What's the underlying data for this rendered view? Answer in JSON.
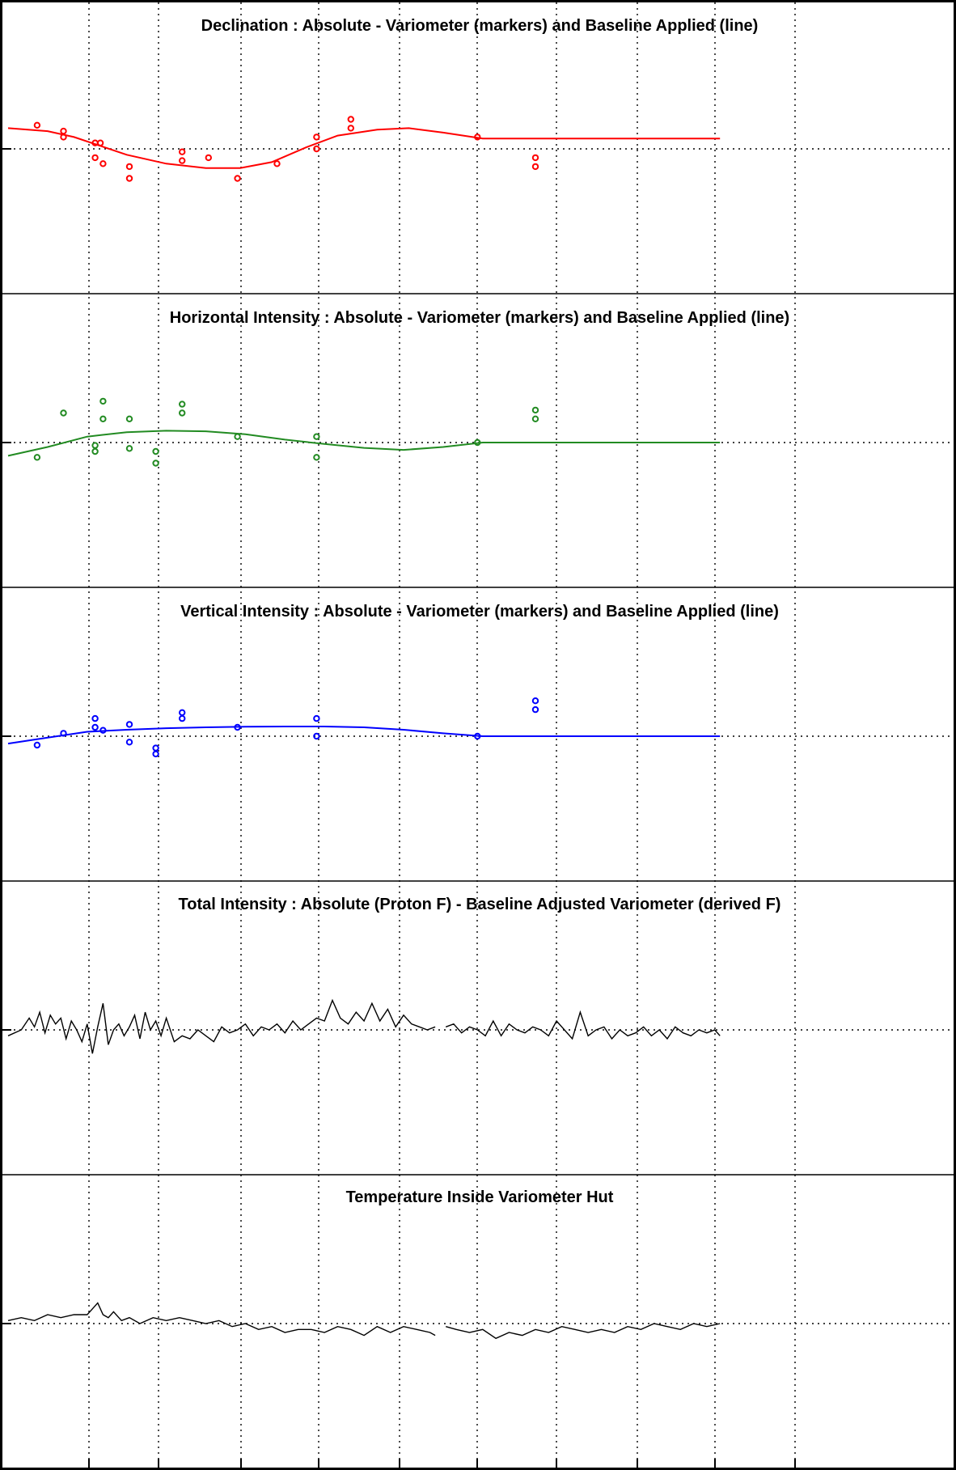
{
  "chart_data": [
    {
      "type": "scatter",
      "title": "Declination : Absolute - Variometer (markers) and Baseline Applied (line)",
      "color": "#ff0000",
      "x_range": [
        0,
        30
      ],
      "y_range": [
        -8,
        8
      ],
      "reference_y": 0,
      "markers": [
        {
          "x": 1.1,
          "y": 0.8
        },
        {
          "x": 2.1,
          "y": 0.6
        },
        {
          "x": 2.1,
          "y": 0.4
        },
        {
          "x": 3.3,
          "y": 0.2
        },
        {
          "x": 3.5,
          "y": 0.2
        },
        {
          "x": 3.3,
          "y": -0.3
        },
        {
          "x": 3.6,
          "y": -0.5
        },
        {
          "x": 4.6,
          "y": -0.6
        },
        {
          "x": 4.6,
          "y": -1.0
        },
        {
          "x": 6.6,
          "y": -0.1
        },
        {
          "x": 6.6,
          "y": -0.4
        },
        {
          "x": 7.6,
          "y": -0.3
        },
        {
          "x": 8.7,
          "y": -1.0
        },
        {
          "x": 10.2,
          "y": -0.5
        },
        {
          "x": 11.7,
          "y": 0.4
        },
        {
          "x": 11.7,
          "y": 0.0
        },
        {
          "x": 13.0,
          "y": 1.0
        },
        {
          "x": 13.0,
          "y": 0.7
        },
        {
          "x": 17.8,
          "y": 0.4
        },
        {
          "x": 20.0,
          "y": -0.3
        },
        {
          "x": 20.0,
          "y": -0.6
        }
      ],
      "baseline": [
        {
          "x": 0,
          "y": 0.7
        },
        {
          "x": 1.5,
          "y": 0.6
        },
        {
          "x": 2.5,
          "y": 0.4
        },
        {
          "x": 3.5,
          "y": 0.1
        },
        {
          "x": 4.5,
          "y": -0.2
        },
        {
          "x": 6.0,
          "y": -0.5
        },
        {
          "x": 7.5,
          "y": -0.65
        },
        {
          "x": 8.8,
          "y": -0.65
        },
        {
          "x": 10.0,
          "y": -0.45
        },
        {
          "x": 11.3,
          "y": 0.05
        },
        {
          "x": 12.5,
          "y": 0.45
        },
        {
          "x": 14.0,
          "y": 0.65
        },
        {
          "x": 15.2,
          "y": 0.7
        },
        {
          "x": 16.5,
          "y": 0.55
        },
        {
          "x": 18.0,
          "y": 0.35
        },
        {
          "x": 27.0,
          "y": 0.35
        }
      ]
    },
    {
      "type": "scatter",
      "title": "Horizontal Intensity : Absolute - Variometer (markers) and Baseline Applied (line)",
      "color": "#228B22",
      "x_range": [
        0,
        30
      ],
      "y_range": [
        -8,
        8
      ],
      "reference_y": 0,
      "markers": [
        {
          "x": 1.1,
          "y": -0.5
        },
        {
          "x": 2.1,
          "y": 1.0
        },
        {
          "x": 3.6,
          "y": 1.4
        },
        {
          "x": 3.6,
          "y": 0.8
        },
        {
          "x": 3.3,
          "y": -0.1
        },
        {
          "x": 3.3,
          "y": -0.3
        },
        {
          "x": 4.6,
          "y": 0.8
        },
        {
          "x": 4.6,
          "y": -0.2
        },
        {
          "x": 5.6,
          "y": -0.3
        },
        {
          "x": 5.6,
          "y": -0.7
        },
        {
          "x": 6.6,
          "y": 1.3
        },
        {
          "x": 6.6,
          "y": 1.0
        },
        {
          "x": 8.7,
          "y": 0.2
        },
        {
          "x": 11.7,
          "y": 0.2
        },
        {
          "x": 11.7,
          "y": -0.5
        },
        {
          "x": 17.8,
          "y": 0.0
        },
        {
          "x": 20.0,
          "y": 1.1
        },
        {
          "x": 20.0,
          "y": 0.8
        }
      ],
      "baseline": [
        {
          "x": 0,
          "y": -0.45
        },
        {
          "x": 1.5,
          "y": -0.15
        },
        {
          "x": 3.0,
          "y": 0.2
        },
        {
          "x": 4.5,
          "y": 0.35
        },
        {
          "x": 6.0,
          "y": 0.4
        },
        {
          "x": 7.5,
          "y": 0.38
        },
        {
          "x": 9.0,
          "y": 0.28
        },
        {
          "x": 10.5,
          "y": 0.1
        },
        {
          "x": 12.0,
          "y": -0.05
        },
        {
          "x": 13.5,
          "y": -0.18
        },
        {
          "x": 15.0,
          "y": -0.25
        },
        {
          "x": 16.5,
          "y": -0.15
        },
        {
          "x": 18.0,
          "y": 0.0
        },
        {
          "x": 27.0,
          "y": 0.0
        }
      ]
    },
    {
      "type": "scatter",
      "title": "Vertical Intensity : Absolute - Variometer (markers) and Baseline Applied (line)",
      "color": "#0000ff",
      "x_range": [
        0,
        30
      ],
      "y_range": [
        -8,
        8
      ],
      "reference_y": 0,
      "markers": [
        {
          "x": 1.1,
          "y": -0.3
        },
        {
          "x": 2.1,
          "y": 0.1
        },
        {
          "x": 3.3,
          "y": 0.6
        },
        {
          "x": 3.3,
          "y": 0.3
        },
        {
          "x": 3.6,
          "y": 0.2
        },
        {
          "x": 4.6,
          "y": 0.4
        },
        {
          "x": 4.6,
          "y": -0.2
        },
        {
          "x": 5.6,
          "y": -0.4
        },
        {
          "x": 5.6,
          "y": -0.6
        },
        {
          "x": 6.6,
          "y": 0.8
        },
        {
          "x": 6.6,
          "y": 0.6
        },
        {
          "x": 8.7,
          "y": 0.3
        },
        {
          "x": 11.7,
          "y": 0.6
        },
        {
          "x": 11.7,
          "y": 0.0
        },
        {
          "x": 17.8,
          "y": 0.0
        },
        {
          "x": 20.0,
          "y": 1.2
        },
        {
          "x": 20.0,
          "y": 0.9
        }
      ],
      "baseline": [
        {
          "x": 0,
          "y": -0.25
        },
        {
          "x": 1.5,
          "y": -0.05
        },
        {
          "x": 3.0,
          "y": 0.15
        },
        {
          "x": 4.5,
          "y": 0.22
        },
        {
          "x": 6.0,
          "y": 0.27
        },
        {
          "x": 7.5,
          "y": 0.3
        },
        {
          "x": 9.0,
          "y": 0.32
        },
        {
          "x": 10.5,
          "y": 0.33
        },
        {
          "x": 12.0,
          "y": 0.33
        },
        {
          "x": 13.5,
          "y": 0.3
        },
        {
          "x": 15.0,
          "y": 0.22
        },
        {
          "x": 16.5,
          "y": 0.1
        },
        {
          "x": 18.0,
          "y": 0.0
        },
        {
          "x": 27.0,
          "y": 0.0
        }
      ]
    },
    {
      "type": "line",
      "title": "Total Intensity : Absolute (Proton F) - Baseline Adjusted Variometer (derived F)",
      "color": "#000000",
      "x_range": [
        0,
        30
      ],
      "y_range": [
        -8,
        8
      ],
      "reference_y": 0,
      "series": [
        {
          "x": [
            0.0,
            0.5,
            0.8,
            1.0,
            1.2,
            1.4,
            1.6,
            1.8,
            2.0,
            2.2,
            2.4,
            2.6,
            2.8,
            3.0,
            3.2,
            3.4,
            3.6,
            3.8,
            4.0,
            4.2,
            4.4,
            4.6,
            4.8,
            5.0,
            5.2,
            5.4,
            5.6,
            5.8,
            6.0,
            6.3,
            6.6,
            6.9,
            7.2,
            7.5,
            7.8,
            8.1,
            8.4,
            8.7,
            9.0,
            9.3,
            9.6,
            9.9,
            10.2,
            10.5,
            10.8,
            11.1,
            11.4,
            11.7,
            12.0,
            12.3,
            12.6,
            12.9,
            13.2,
            13.5,
            13.8,
            14.1,
            14.4,
            14.7,
            15.0,
            15.3,
            15.6,
            15.9,
            16.2
          ],
          "y": [
            -0.2,
            0.0,
            0.4,
            0.1,
            0.6,
            -0.1,
            0.5,
            0.2,
            0.4,
            -0.3,
            0.3,
            0.0,
            -0.4,
            0.2,
            -0.8,
            0.1,
            0.9,
            -0.5,
            0.0,
            0.2,
            -0.2,
            0.1,
            0.5,
            -0.3,
            0.6,
            0.0,
            0.3,
            -0.2,
            0.4,
            -0.4,
            -0.2,
            -0.3,
            0.0,
            -0.2,
            -0.4,
            0.1,
            -0.1,
            0.0,
            0.2,
            -0.2,
            0.1,
            0.0,
            0.2,
            -0.1,
            0.3,
            0.0,
            0.2,
            0.4,
            0.3,
            1.0,
            0.4,
            0.2,
            0.6,
            0.3,
            0.9,
            0.3,
            0.7,
            0.1,
            0.5,
            0.2,
            0.1,
            0.0,
            0.1
          ]
        },
        {
          "x": [
            16.6,
            16.9,
            17.2,
            17.5,
            17.8,
            18.1,
            18.4,
            18.7,
            19.0,
            19.3,
            19.6,
            19.9,
            20.2,
            20.5,
            20.8,
            21.1,
            21.4,
            21.7,
            22.0,
            22.3,
            22.6,
            22.9,
            23.2,
            23.5,
            23.8,
            24.1,
            24.4,
            24.7,
            25.0,
            25.3,
            25.6,
            25.9,
            26.2,
            26.5,
            26.8,
            27.0
          ],
          "y": [
            0.1,
            0.2,
            -0.1,
            0.1,
            0.0,
            -0.2,
            0.3,
            -0.2,
            0.2,
            0.0,
            -0.1,
            0.1,
            0.0,
            -0.2,
            0.3,
            0.0,
            -0.3,
            0.6,
            -0.2,
            0.0,
            0.1,
            -0.3,
            0.0,
            -0.2,
            -0.1,
            0.1,
            -0.2,
            0.0,
            -0.3,
            0.1,
            -0.1,
            -0.2,
            0.0,
            -0.1,
            0.0,
            -0.2
          ]
        }
      ]
    },
    {
      "type": "line",
      "title": "Temperature Inside Variometer Hut",
      "color": "#000000",
      "x_range": [
        0,
        30
      ],
      "y_range": [
        -8,
        8
      ],
      "reference_y": 0,
      "series": [
        {
          "x": [
            0.0,
            0.5,
            1.0,
            1.5,
            2.0,
            2.5,
            3.0,
            3.2,
            3.4,
            3.6,
            3.8,
            4.0,
            4.3,
            4.6,
            5.0,
            5.5,
            6.0,
            6.5,
            7.0,
            7.5,
            8.0,
            8.5,
            9.0,
            9.5,
            10.0,
            10.5,
            11.0,
            11.5,
            12.0,
            12.5,
            13.0,
            13.5,
            14.0,
            14.5,
            15.0,
            15.5,
            16.0,
            16.2
          ],
          "y": [
            0.1,
            0.2,
            0.1,
            0.3,
            0.2,
            0.3,
            0.3,
            0.5,
            0.7,
            0.3,
            0.2,
            0.4,
            0.1,
            0.2,
            0.0,
            0.2,
            0.1,
            0.2,
            0.1,
            0.0,
            0.1,
            -0.1,
            0.0,
            -0.2,
            -0.1,
            -0.3,
            -0.2,
            -0.2,
            -0.3,
            -0.1,
            -0.2,
            -0.4,
            -0.1,
            -0.3,
            -0.1,
            -0.2,
            -0.3,
            -0.4
          ]
        },
        {
          "x": [
            16.6,
            17.0,
            17.5,
            18.0,
            18.5,
            19.0,
            19.5,
            20.0,
            20.5,
            21.0,
            21.5,
            22.0,
            22.5,
            23.0,
            23.5,
            24.0,
            24.5,
            25.0,
            25.5,
            26.0,
            26.5,
            27.0
          ],
          "y": [
            -0.1,
            -0.2,
            -0.3,
            -0.2,
            -0.5,
            -0.3,
            -0.4,
            -0.2,
            -0.3,
            -0.1,
            -0.2,
            -0.3,
            -0.2,
            -0.3,
            -0.1,
            -0.2,
            0.0,
            -0.1,
            -0.2,
            0.0,
            -0.1,
            0.0
          ]
        }
      ]
    }
  ]
}
